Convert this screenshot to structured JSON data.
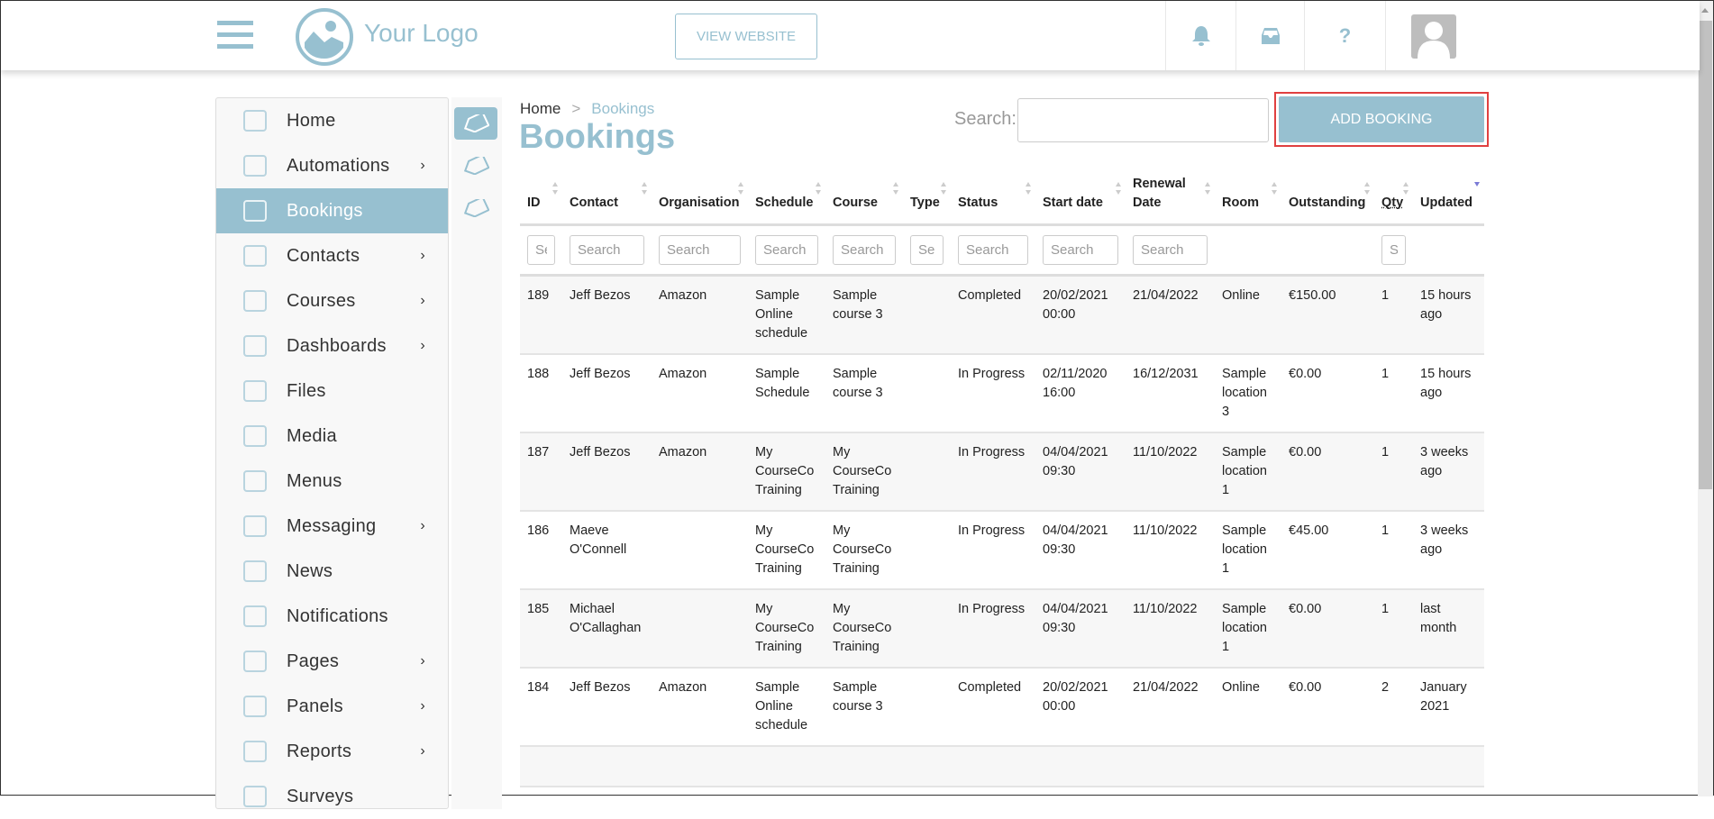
{
  "header": {
    "logo_text": "Your Logo",
    "view_website": "VIEW WEBSITE",
    "icons": [
      "menu-icon",
      "bell-icon",
      "inbox-icon",
      "help-icon",
      "avatar"
    ]
  },
  "sidebar": {
    "items": [
      {
        "label": "Home",
        "icon": "home-icon",
        "chevron": false
      },
      {
        "label": "Automations",
        "icon": "bell-icon",
        "chevron": true
      },
      {
        "label": "Bookings",
        "icon": "tag-icon",
        "chevron": false,
        "active": true
      },
      {
        "label": "Contacts",
        "icon": "contacts-icon",
        "chevron": true
      },
      {
        "label": "Courses",
        "icon": "courses-icon",
        "chevron": true
      },
      {
        "label": "Dashboards",
        "icon": "chart-icon",
        "chevron": true
      },
      {
        "label": "Files",
        "icon": "folder-icon",
        "chevron": false
      },
      {
        "label": "Media",
        "icon": "monitor-icon",
        "chevron": false
      },
      {
        "label": "Menus",
        "icon": "menu-icon",
        "chevron": false
      },
      {
        "label": "Messaging",
        "icon": "chat-icon",
        "chevron": true
      },
      {
        "label": "News",
        "icon": "newspaper-icon",
        "chevron": false
      },
      {
        "label": "Notifications",
        "icon": "bell-icon",
        "chevron": false
      },
      {
        "label": "Pages",
        "icon": "pages-icon",
        "chevron": true
      },
      {
        "label": "Panels",
        "icon": "panels-icon",
        "chevron": true
      },
      {
        "label": "Reports",
        "icon": "reports-icon",
        "chevron": true
      },
      {
        "label": "Surveys",
        "icon": "survey-icon",
        "chevron": false
      }
    ],
    "sub_icons": [
      "tag-icon",
      "price-tag-icon",
      "handshake-icon"
    ]
  },
  "breadcrumb": {
    "home": "Home",
    "separator": ">",
    "current": "Bookings"
  },
  "page_title": "Bookings",
  "search": {
    "label": "Search:",
    "value": ""
  },
  "add_button": "ADD BOOKING",
  "colors": {
    "accent": "#97c0d0",
    "highlight": "#e04040"
  },
  "table": {
    "columns": [
      "ID",
      "Contact",
      "Organisation",
      "Schedule",
      "Course",
      "Type",
      "Status",
      "Start date",
      "Renewal Date",
      "Room",
      "Outstanding",
      "Qty",
      "Updated"
    ],
    "sorted_column": "Updated",
    "sort_direction": "descending",
    "filter_placeholder": "Search",
    "filter_columns": [
      "ID",
      "Contact",
      "Organisation",
      "Schedule",
      "Course",
      "Type",
      "Status",
      "Start date",
      "Renewal Date",
      "Qty"
    ],
    "rows": [
      [
        "189",
        "Jeff Bezos",
        "Amazon",
        "Sample Online schedule",
        "Sample course 3",
        "",
        "Completed",
        "20/02/2021 00:00",
        "21/04/2022",
        "Online",
        "€150.00",
        "1",
        "15 hours ago"
      ],
      [
        "188",
        "Jeff Bezos",
        "Amazon",
        "Sample Schedule",
        "Sample course 3",
        "",
        "In Progress",
        "02/11/2020 16:00",
        "16/12/2031",
        "Sample location 3",
        "€0.00",
        "1",
        "15 hours ago"
      ],
      [
        "187",
        "Jeff Bezos",
        "Amazon",
        "My CourseCo Training",
        "My CourseCo Training",
        "",
        "In Progress",
        "04/04/2021 09:30",
        "11/10/2022",
        "Sample location 1",
        "€0.00",
        "1",
        "3 weeks ago"
      ],
      [
        "186",
        "Maeve O'Connell",
        "",
        "My CourseCo Training",
        "My CourseCo Training",
        "",
        "In Progress",
        "04/04/2021 09:30",
        "11/10/2022",
        "Sample location 1",
        "€45.00",
        "1",
        "3 weeks ago"
      ],
      [
        "185",
        "Michael O'Callaghan",
        "",
        "My CourseCo Training",
        "My CourseCo Training",
        "",
        "In Progress",
        "04/04/2021 09:30",
        "11/10/2022",
        "Sample location 1",
        "€0.00",
        "1",
        "last month"
      ],
      [
        "184",
        "Jeff Bezos",
        "Amazon",
        "Sample Online schedule",
        "Sample course 3",
        "",
        "Completed",
        "20/02/2021 00:00",
        "21/04/2022",
        "Online",
        "€0.00",
        "2",
        "January 2021"
      ]
    ]
  }
}
